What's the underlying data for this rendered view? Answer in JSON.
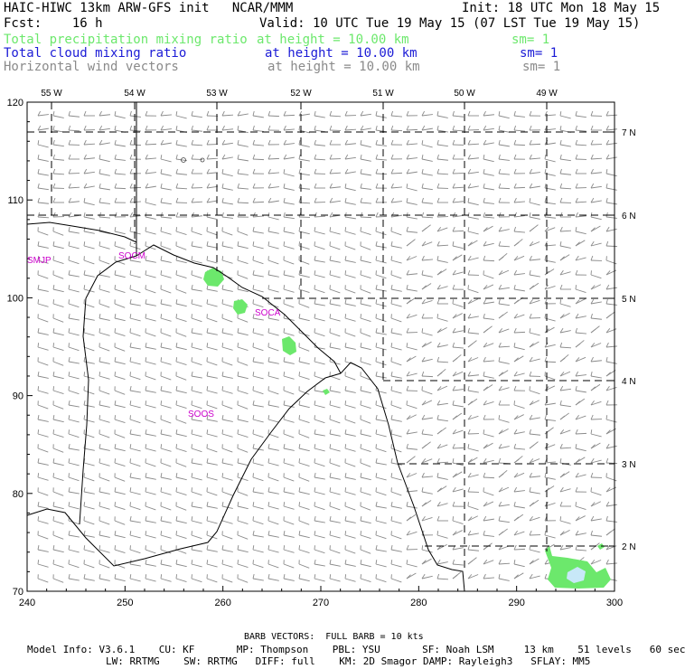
{
  "header": {
    "title": "HAIC-HIWC 13km ARW-GFS init   NCAR/MMM",
    "init": "Init: 18 UTC Mon 18 May 15",
    "fcst": "Fcst:    16 h",
    "valid": "Valid: 10 UTC Tue 19 May 15 (07 LST Tue 19 May 15)",
    "fields": [
      {
        "name": "Total precipitation mixing ratio",
        "height": "at height = 10.00 km",
        "sm": "sm= 1",
        "color": "#6ce86c"
      },
      {
        "name": "Total cloud mixing ratio",
        "height": "at height = 10.00 km",
        "sm": "sm= 1",
        "color": "#1b1bd6"
      },
      {
        "name": "Horizontal wind vectors",
        "height": "at height = 10.00 km",
        "sm": "sm= 1",
        "color": "#8a8a8a"
      }
    ]
  },
  "map": {
    "x_ticks": [
      "240",
      "250",
      "260",
      "270",
      "280",
      "290",
      "300"
    ],
    "y_ticks": [
      "70",
      "80",
      "90",
      "100",
      "110",
      "120"
    ],
    "lon_labels": [
      "55 W",
      "54 W",
      "53 W",
      "52 W",
      "51 W",
      "50 W",
      "49 W"
    ],
    "lat_labels": [
      "2 N",
      "3 N",
      "4 N",
      "5 N",
      "6 N",
      "7 N"
    ],
    "stations": [
      "SMJP",
      "SOCM",
      "SOCA",
      "SOOS"
    ],
    "colors": {
      "precip": "#6ce86c",
      "cloud": "#c8e8f8",
      "coast": "#000000",
      "barb": "#8a8a8a",
      "grid": "#000000",
      "station": "#cc00cc"
    }
  },
  "footer": {
    "barb": "BARB VECTORS:  FULL BARB = 10 kts",
    "line1": "Model Info: V3.6.1    CU: KF       MP: Thompson    PBL: YSU       SF: Noah LSM     13 km    51 levels   60 sec",
    "line2": "LW: RRTMG    SW: RRTMG   DIFF: full    KM: 2D Smagor DAMP: Rayleigh3   SFLAY: MM5"
  }
}
